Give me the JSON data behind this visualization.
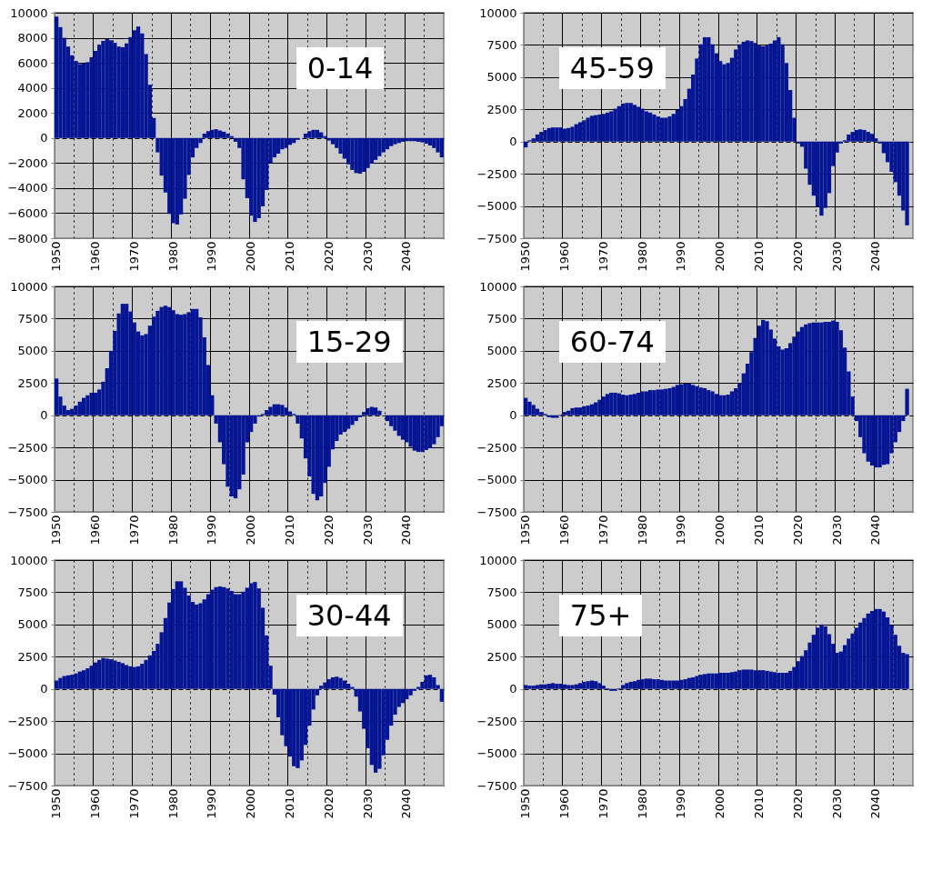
{
  "chart_data": [
    {
      "type": "bar",
      "title": "0-14",
      "color": "#051593",
      "grid": true,
      "ylim": [
        -8000,
        10000
      ],
      "yticks": [
        -8000,
        -6000,
        -4000,
        -2000,
        0,
        2000,
        4000,
        6000,
        8000,
        10000
      ],
      "categories": [
        "1950",
        null,
        null,
        null,
        null,
        null,
        null,
        null,
        null,
        null,
        "1960",
        null,
        null,
        null,
        null,
        null,
        null,
        null,
        null,
        null,
        "1970",
        null,
        null,
        null,
        null,
        null,
        null,
        null,
        null,
        null,
        "1980",
        null,
        null,
        null,
        null,
        null,
        null,
        null,
        null,
        null,
        "1990",
        null,
        null,
        null,
        null,
        null,
        null,
        null,
        null,
        null,
        "2000",
        null,
        null,
        null,
        null,
        null,
        null,
        null,
        null,
        null,
        "2010",
        null,
        null,
        null,
        null,
        null,
        null,
        null,
        null,
        null,
        "2020",
        null,
        null,
        null,
        null,
        null,
        null,
        null,
        null,
        null,
        "2030",
        null,
        null,
        null,
        null,
        null,
        null,
        null,
        null,
        null,
        "2040",
        null,
        null,
        null,
        null,
        null,
        null,
        null,
        null,
        null
      ],
      "values": [
        9700,
        8850,
        8000,
        7300,
        6600,
        6150,
        5900,
        5950,
        6050,
        6450,
        6950,
        7450,
        7750,
        7900,
        7800,
        7600,
        7300,
        7250,
        7550,
        8050,
        8600,
        8900,
        8350,
        6700,
        4250,
        1600,
        -1150,
        -3000,
        -4350,
        -6050,
        -6800,
        -6900,
        -6100,
        -4850,
        -2950,
        -1550,
        -800,
        -400,
        350,
        550,
        650,
        700,
        600,
        500,
        350,
        150,
        -300,
        -800,
        -3300,
        -4800,
        -6200,
        -6700,
        -6400,
        -5450,
        -4150,
        -2000,
        -1550,
        -1250,
        -900,
        -800,
        -550,
        -400,
        -150,
        null,
        350,
        550,
        650,
        650,
        450,
        150,
        -200,
        -500,
        -800,
        -1250,
        -1650,
        -2100,
        -2550,
        -2800,
        -2850,
        -2700,
        -2400,
        -2050,
        -1750,
        -1450,
        -1150,
        -900,
        -650,
        -500,
        -400,
        -300,
        -250,
        -250,
        -250,
        -300,
        -350,
        -450,
        -600,
        -800,
        -1150,
        -1550
      ]
    },
    {
      "type": "bar",
      "title": "45-59",
      "color": "#051593",
      "grid": true,
      "ylim": [
        -7500,
        10000
      ],
      "yticks": [
        -7500,
        -5000,
        -2500,
        0,
        2500,
        5000,
        7500,
        10000
      ],
      "categories": [
        "1950",
        null,
        null,
        null,
        null,
        null,
        null,
        null,
        null,
        null,
        "1960",
        null,
        null,
        null,
        null,
        null,
        null,
        null,
        null,
        null,
        "1970",
        null,
        null,
        null,
        null,
        null,
        null,
        null,
        null,
        null,
        "1980",
        null,
        null,
        null,
        null,
        null,
        null,
        null,
        null,
        null,
        "1990",
        null,
        null,
        null,
        null,
        null,
        null,
        null,
        null,
        null,
        "2000",
        null,
        null,
        null,
        null,
        null,
        null,
        null,
        null,
        null,
        "2010",
        null,
        null,
        null,
        null,
        null,
        null,
        null,
        null,
        null,
        "2020",
        null,
        null,
        null,
        null,
        null,
        null,
        null,
        null,
        null,
        "2030",
        null,
        null,
        null,
        null,
        null,
        null,
        null,
        null,
        null,
        "2040",
        null,
        null,
        null,
        null,
        null,
        null,
        null,
        null,
        null
      ],
      "values": [
        -450,
        100,
        250,
        550,
        750,
        900,
        1050,
        1100,
        1100,
        1100,
        1000,
        1050,
        1150,
        1350,
        1500,
        1650,
        1850,
        2000,
        2050,
        2100,
        2150,
        2250,
        2350,
        2550,
        2750,
        2950,
        3000,
        3000,
        2850,
        2700,
        2550,
        2350,
        2250,
        2100,
        1950,
        1850,
        1850,
        1950,
        2150,
        2450,
        2750,
        3300,
        4100,
        5200,
        6450,
        7550,
        8100,
        8100,
        7550,
        6850,
        6250,
        6000,
        6100,
        6500,
        7150,
        7550,
        7750,
        7850,
        7800,
        7650,
        7450,
        7400,
        7450,
        7600,
        7850,
        8100,
        7550,
        6100,
        4000,
        1850,
        -150,
        -400,
        -2100,
        -3350,
        -4200,
        -5050,
        -5750,
        -5150,
        -4000,
        -1900,
        -850,
        -150,
        100,
        550,
        750,
        900,
        950,
        900,
        750,
        600,
        250,
        -150,
        -900,
        -1600,
        -2350,
        -3150,
        -4200,
        -5350,
        -6500,
        null
      ]
    },
    {
      "type": "bar",
      "title": "15-29",
      "color": "#051593",
      "grid": true,
      "ylim": [
        -7500,
        10000
      ],
      "yticks": [
        -7500,
        -5000,
        -2500,
        0,
        2500,
        5000,
        7500,
        10000
      ],
      "categories": [
        "1950",
        null,
        null,
        null,
        null,
        null,
        null,
        null,
        null,
        null,
        "1960",
        null,
        null,
        null,
        null,
        null,
        null,
        null,
        null,
        null,
        "1970",
        null,
        null,
        null,
        null,
        null,
        null,
        null,
        null,
        null,
        "1980",
        null,
        null,
        null,
        null,
        null,
        null,
        null,
        null,
        null,
        "1990",
        null,
        null,
        null,
        null,
        null,
        null,
        null,
        null,
        null,
        "2000",
        null,
        null,
        null,
        null,
        null,
        null,
        null,
        null,
        null,
        "2010",
        null,
        null,
        null,
        null,
        null,
        null,
        null,
        null,
        null,
        "2020",
        null,
        null,
        null,
        null,
        null,
        null,
        null,
        null,
        null,
        "2030",
        null,
        null,
        null,
        null,
        null,
        null,
        null,
        null,
        null,
        "2040",
        null,
        null,
        null,
        null,
        null,
        null,
        null,
        null,
        null
      ],
      "values": [
        2850,
        1450,
        750,
        400,
        500,
        750,
        1050,
        1350,
        1550,
        1750,
        1750,
        2000,
        2600,
        3650,
        5000,
        6550,
        7900,
        8650,
        8650,
        8050,
        7200,
        6500,
        6200,
        6300,
        6950,
        7650,
        8100,
        8400,
        8500,
        8400,
        8150,
        7850,
        7800,
        7850,
        8000,
        8250,
        8250,
        7600,
        6050,
        3900,
        1550,
        -650,
        -2100,
        -3800,
        -5550,
        -6300,
        -6450,
        -5750,
        -4600,
        -2100,
        -1300,
        -650,
        -100,
        100,
        400,
        650,
        850,
        850,
        800,
        600,
        300,
        100,
        -650,
        -1800,
        -3350,
        -4750,
        -6100,
        -6600,
        -6300,
        -5250,
        -4000,
        -2650,
        -2000,
        -1500,
        -1300,
        -1050,
        -750,
        -450,
        -150,
        250,
        550,
        650,
        600,
        350,
        null,
        -450,
        -850,
        -1200,
        -1600,
        -1900,
        -2100,
        -2450,
        -2750,
        -2850,
        -2850,
        -2700,
        -2550,
        -2250,
        -1700,
        -850
      ]
    },
    {
      "type": "bar",
      "title": "60-74",
      "color": "#051593",
      "grid": true,
      "ylim": [
        -7500,
        10000
      ],
      "yticks": [
        -7500,
        -5000,
        -2500,
        0,
        2500,
        5000,
        7500,
        10000
      ],
      "categories": [
        "1950",
        null,
        null,
        null,
        null,
        null,
        null,
        null,
        null,
        null,
        "1960",
        null,
        null,
        null,
        null,
        null,
        null,
        null,
        null,
        null,
        "1970",
        null,
        null,
        null,
        null,
        null,
        null,
        null,
        null,
        null,
        "1980",
        null,
        null,
        null,
        null,
        null,
        null,
        null,
        null,
        null,
        "1990",
        null,
        null,
        null,
        null,
        null,
        null,
        null,
        null,
        null,
        "2000",
        null,
        null,
        null,
        null,
        null,
        null,
        null,
        null,
        null,
        "2010",
        null,
        null,
        null,
        null,
        null,
        null,
        null,
        null,
        null,
        "2020",
        null,
        null,
        null,
        null,
        null,
        null,
        null,
        null,
        null,
        "2030",
        null,
        null,
        null,
        null,
        null,
        null,
        null,
        null,
        null,
        "2040",
        null,
        null,
        null,
        null,
        null,
        null,
        null,
        null,
        null
      ],
      "values": [
        1350,
        1050,
        800,
        500,
        250,
        100,
        -150,
        -200,
        -200,
        50,
        250,
        350,
        550,
        600,
        600,
        700,
        750,
        850,
        1000,
        1200,
        1450,
        1650,
        1750,
        1750,
        1700,
        1600,
        1550,
        1600,
        1650,
        1750,
        1850,
        1850,
        1950,
        1950,
        2000,
        2000,
        2050,
        2100,
        2200,
        2350,
        2400,
        2450,
        2450,
        2350,
        2250,
        2150,
        2100,
        1950,
        1850,
        1650,
        1550,
        1550,
        1600,
        1850,
        2100,
        2500,
        3250,
        4000,
        4900,
        6000,
        6950,
        7400,
        7300,
        6650,
        5950,
        5350,
        5100,
        5200,
        5600,
        6100,
        6500,
        6850,
        7050,
        7150,
        7200,
        7200,
        7200,
        7250,
        7250,
        7350,
        7250,
        6600,
        5250,
        3400,
        1450,
        -450,
        -1700,
        -2950,
        -3600,
        -3900,
        -4050,
        -4050,
        -3850,
        -3800,
        -2950,
        -2100,
        -1300,
        -450,
        2050,
        null
      ]
    },
    {
      "type": "bar",
      "title": "30-44",
      "color": "#051593",
      "grid": true,
      "ylim": [
        -7500,
        10000
      ],
      "yticks": [
        -7500,
        -5000,
        -2500,
        0,
        2500,
        5000,
        7500,
        10000
      ],
      "categories": [
        "1950",
        null,
        null,
        null,
        null,
        null,
        null,
        null,
        null,
        null,
        "1960",
        null,
        null,
        null,
        null,
        null,
        null,
        null,
        null,
        null,
        "1970",
        null,
        null,
        null,
        null,
        null,
        null,
        null,
        null,
        null,
        "1980",
        null,
        null,
        null,
        null,
        null,
        null,
        null,
        null,
        null,
        "1990",
        null,
        null,
        null,
        null,
        null,
        null,
        null,
        null,
        null,
        "2000",
        null,
        null,
        null,
        null,
        null,
        null,
        null,
        null,
        null,
        "2010",
        null,
        null,
        null,
        null,
        null,
        null,
        null,
        null,
        null,
        "2020",
        null,
        null,
        null,
        null,
        null,
        null,
        null,
        null,
        null,
        "2030",
        null,
        null,
        null,
        null,
        null,
        null,
        null,
        null,
        null,
        "2040",
        null,
        null,
        null,
        null,
        null,
        null,
        null,
        null,
        null
      ],
      "values": [
        650,
        850,
        1000,
        1050,
        1100,
        1200,
        1350,
        1450,
        1600,
        1800,
        2050,
        2250,
        2400,
        2350,
        2300,
        2200,
        2100,
        2000,
        1850,
        1750,
        1700,
        1750,
        1950,
        2250,
        2600,
        2950,
        3500,
        4400,
        5500,
        6700,
        7750,
        8350,
        8350,
        7850,
        7250,
        6750,
        6550,
        6650,
        6950,
        7350,
        7700,
        7900,
        7950,
        7900,
        7800,
        7600,
        7350,
        7350,
        7550,
        7850,
        8200,
        8300,
        7800,
        6300,
        4150,
        1800,
        -450,
        -2200,
        -3600,
        -4450,
        -5250,
        -6000,
        -6150,
        -5550,
        -4350,
        -2850,
        -1600,
        -500,
        250,
        500,
        750,
        900,
        950,
        850,
        650,
        400,
        150,
        -600,
        -1750,
        -3100,
        -4600,
        -5900,
        -6500,
        -6200,
        -5150,
        -3950,
        -2850,
        -2000,
        -1400,
        -1100,
        -800,
        -500,
        -150,
        150,
        550,
        1050,
        1100,
        900,
        300,
        -1000
      ]
    },
    {
      "type": "bar",
      "title": "75+",
      "color": "#051593",
      "grid": true,
      "ylim": [
        -7500,
        10000
      ],
      "yticks": [
        -7500,
        -5000,
        -2500,
        0,
        2500,
        5000,
        7500,
        10000
      ],
      "categories": [
        "1950",
        null,
        null,
        null,
        null,
        null,
        null,
        null,
        null,
        null,
        "1960",
        null,
        null,
        null,
        null,
        null,
        null,
        null,
        null,
        null,
        "1970",
        null,
        null,
        null,
        null,
        null,
        null,
        null,
        null,
        null,
        "1980",
        null,
        null,
        null,
        null,
        null,
        null,
        null,
        null,
        null,
        "1990",
        null,
        null,
        null,
        null,
        null,
        null,
        null,
        null,
        null,
        "2000",
        null,
        null,
        null,
        null,
        null,
        null,
        null,
        null,
        null,
        "2010",
        null,
        null,
        null,
        null,
        null,
        null,
        null,
        null,
        null,
        "2020",
        null,
        null,
        null,
        null,
        null,
        null,
        null,
        null,
        null,
        "2030",
        null,
        null,
        null,
        null,
        null,
        null,
        null,
        null,
        null,
        "2040",
        null,
        null,
        null,
        null,
        null,
        null,
        null,
        null,
        null
      ],
      "values": [
        300,
        250,
        250,
        300,
        350,
        350,
        400,
        450,
        400,
        400,
        350,
        300,
        300,
        350,
        450,
        550,
        600,
        650,
        600,
        450,
        250,
        50,
        -150,
        -150,
        50,
        300,
        450,
        550,
        600,
        700,
        750,
        800,
        800,
        750,
        750,
        700,
        650,
        650,
        650,
        650,
        700,
        750,
        850,
        900,
        1000,
        1100,
        1150,
        1200,
        1200,
        1200,
        1250,
        1250,
        1250,
        1300,
        1350,
        1450,
        1500,
        1500,
        1500,
        1450,
        1450,
        1450,
        1400,
        1350,
        1300,
        1250,
        1250,
        1250,
        1400,
        1700,
        2150,
        2550,
        3000,
        3600,
        4200,
        4750,
        5000,
        4850,
        4250,
        3500,
        2800,
        2900,
        3400,
        3900,
        4300,
        4750,
        5150,
        5500,
        5850,
        6050,
        6200,
        6200,
        6000,
        5550,
        4950,
        4200,
        3350,
        2800,
        2700,
        null
      ]
    }
  ]
}
